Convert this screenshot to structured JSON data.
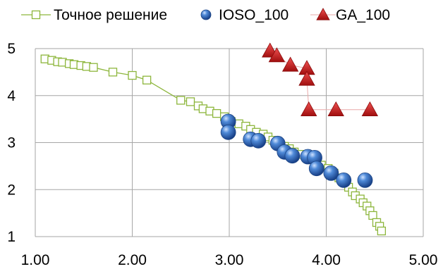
{
  "chart_data": {
    "type": "scatter",
    "xlim": [
      1.0,
      5.0
    ],
    "ylim": [
      1,
      5
    ],
    "x_ticks": [
      "1.00",
      "2.00",
      "3.00",
      "4.00",
      "5.00"
    ],
    "y_ticks": [
      "1",
      "2",
      "3",
      "4",
      "5"
    ],
    "grid": true,
    "legend_position": "top",
    "series": [
      {
        "name": "Точное решение",
        "style": "line-open-square",
        "color": "#8db63c",
        "points": [
          [
            1.1,
            4.78
          ],
          [
            1.17,
            4.75
          ],
          [
            1.23,
            4.72
          ],
          [
            1.28,
            4.71
          ],
          [
            1.35,
            4.68
          ],
          [
            1.4,
            4.66
          ],
          [
            1.47,
            4.64
          ],
          [
            1.53,
            4.62
          ],
          [
            1.6,
            4.6
          ],
          [
            1.8,
            4.5
          ],
          [
            2.0,
            4.43
          ],
          [
            2.15,
            4.33
          ],
          [
            2.5,
            3.9
          ],
          [
            2.6,
            3.87
          ],
          [
            2.68,
            3.78
          ],
          [
            2.73,
            3.72
          ],
          [
            2.8,
            3.67
          ],
          [
            2.87,
            3.62
          ],
          [
            2.95,
            3.55
          ],
          [
            3.02,
            3.45
          ],
          [
            3.1,
            3.4
          ],
          [
            3.17,
            3.35
          ],
          [
            3.22,
            3.28
          ],
          [
            3.28,
            3.22
          ],
          [
            3.35,
            3.18
          ],
          [
            3.4,
            3.12
          ],
          [
            3.45,
            3.05
          ],
          [
            3.52,
            2.98
          ],
          [
            3.57,
            2.92
          ],
          [
            3.62,
            2.87
          ],
          [
            3.67,
            2.8
          ],
          [
            3.73,
            2.75
          ],
          [
            3.8,
            2.7
          ],
          [
            3.88,
            2.6
          ],
          [
            3.95,
            2.52
          ],
          [
            4.02,
            2.45
          ],
          [
            4.08,
            2.35
          ],
          [
            4.13,
            2.25
          ],
          [
            4.18,
            2.17
          ],
          [
            4.23,
            2.05
          ],
          [
            4.27,
            1.95
          ],
          [
            4.3,
            1.87
          ],
          [
            4.35,
            1.8
          ],
          [
            4.38,
            1.72
          ],
          [
            4.42,
            1.65
          ],
          [
            4.45,
            1.55
          ],
          [
            4.48,
            1.45
          ],
          [
            4.52,
            1.3
          ],
          [
            4.55,
            1.22
          ],
          [
            4.57,
            1.12
          ]
        ]
      },
      {
        "name": "IOSO_100",
        "style": "sphere",
        "color": "#3a72c4",
        "points": [
          [
            2.99,
            3.45
          ],
          [
            2.99,
            3.22
          ],
          [
            3.22,
            3.07
          ],
          [
            3.3,
            3.04
          ],
          [
            3.5,
            2.98
          ],
          [
            3.57,
            2.8
          ],
          [
            3.65,
            2.72
          ],
          [
            3.81,
            2.7
          ],
          [
            3.88,
            2.68
          ],
          [
            3.9,
            2.45
          ],
          [
            4.05,
            2.35
          ],
          [
            4.18,
            2.2
          ],
          [
            4.4,
            2.2
          ]
        ]
      },
      {
        "name": "GA_100",
        "style": "triangle",
        "color": "#cc1e1e",
        "connector_color": "#e8a8a8",
        "points": [
          [
            3.42,
            4.95
          ],
          [
            3.49,
            4.85
          ],
          [
            3.63,
            4.65
          ],
          [
            3.8,
            4.58
          ],
          [
            3.8,
            4.35
          ],
          [
            3.82,
            3.7
          ],
          [
            4.1,
            3.7
          ],
          [
            4.45,
            3.7
          ]
        ]
      }
    ]
  }
}
